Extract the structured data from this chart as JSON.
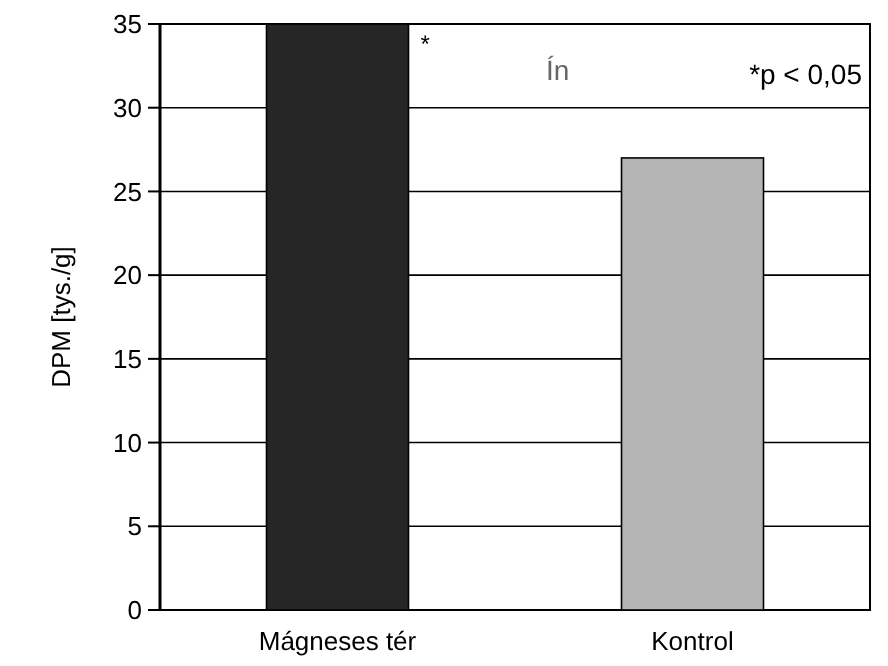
{
  "chart_data": {
    "type": "bar",
    "ylabel": "DPM [tys./g]",
    "categories": [
      "Mágneses tér",
      "Kontrol"
    ],
    "values": [
      35,
      27
    ],
    "colors": [
      "#262626",
      "#b4b4b4"
    ],
    "ylim": [
      0,
      35
    ],
    "yticks": [
      0,
      5,
      10,
      15,
      20,
      25,
      30,
      35
    ],
    "grid": "y",
    "annotations": [
      "*",
      "Ín",
      "*p < 0,05"
    ]
  }
}
